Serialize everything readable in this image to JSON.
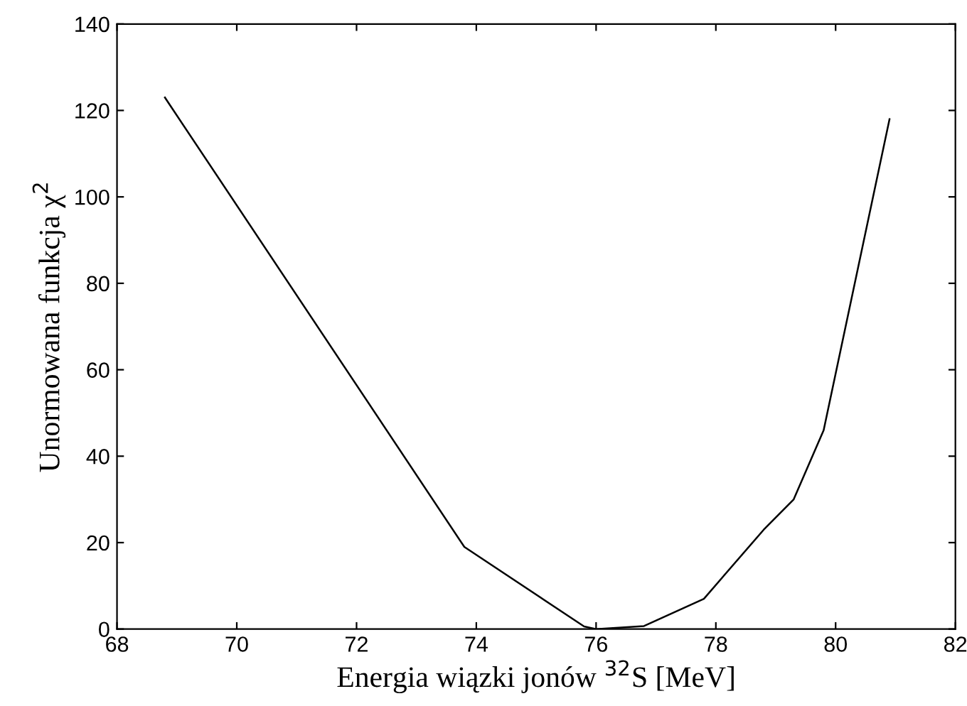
{
  "chart_data": {
    "type": "line",
    "xlabel": "Energia wiązki jonów $^{32}$S [MeV]",
    "ylabel": "Unormowana funkcja χ$^{2}$",
    "x": [
      68.8,
      73.8,
      75.8,
      76.0,
      76.8,
      77.8,
      78.8,
      79.3,
      79.8,
      80.9
    ],
    "series": [
      {
        "color": "#000000",
        "values": [
          123,
          19,
          0.6,
          0,
          0.7,
          7,
          23,
          30,
          46,
          118
        ]
      }
    ],
    "xlim": [
      68,
      82
    ],
    "xticks": [
      68,
      70,
      72,
      74,
      76,
      78,
      80,
      82
    ],
    "ylim": [
      0,
      140
    ],
    "yticks": [
      0,
      20,
      40,
      60,
      80,
      100,
      120,
      140
    ],
    "grid": false,
    "marker": "none",
    "line_style": "solid"
  }
}
